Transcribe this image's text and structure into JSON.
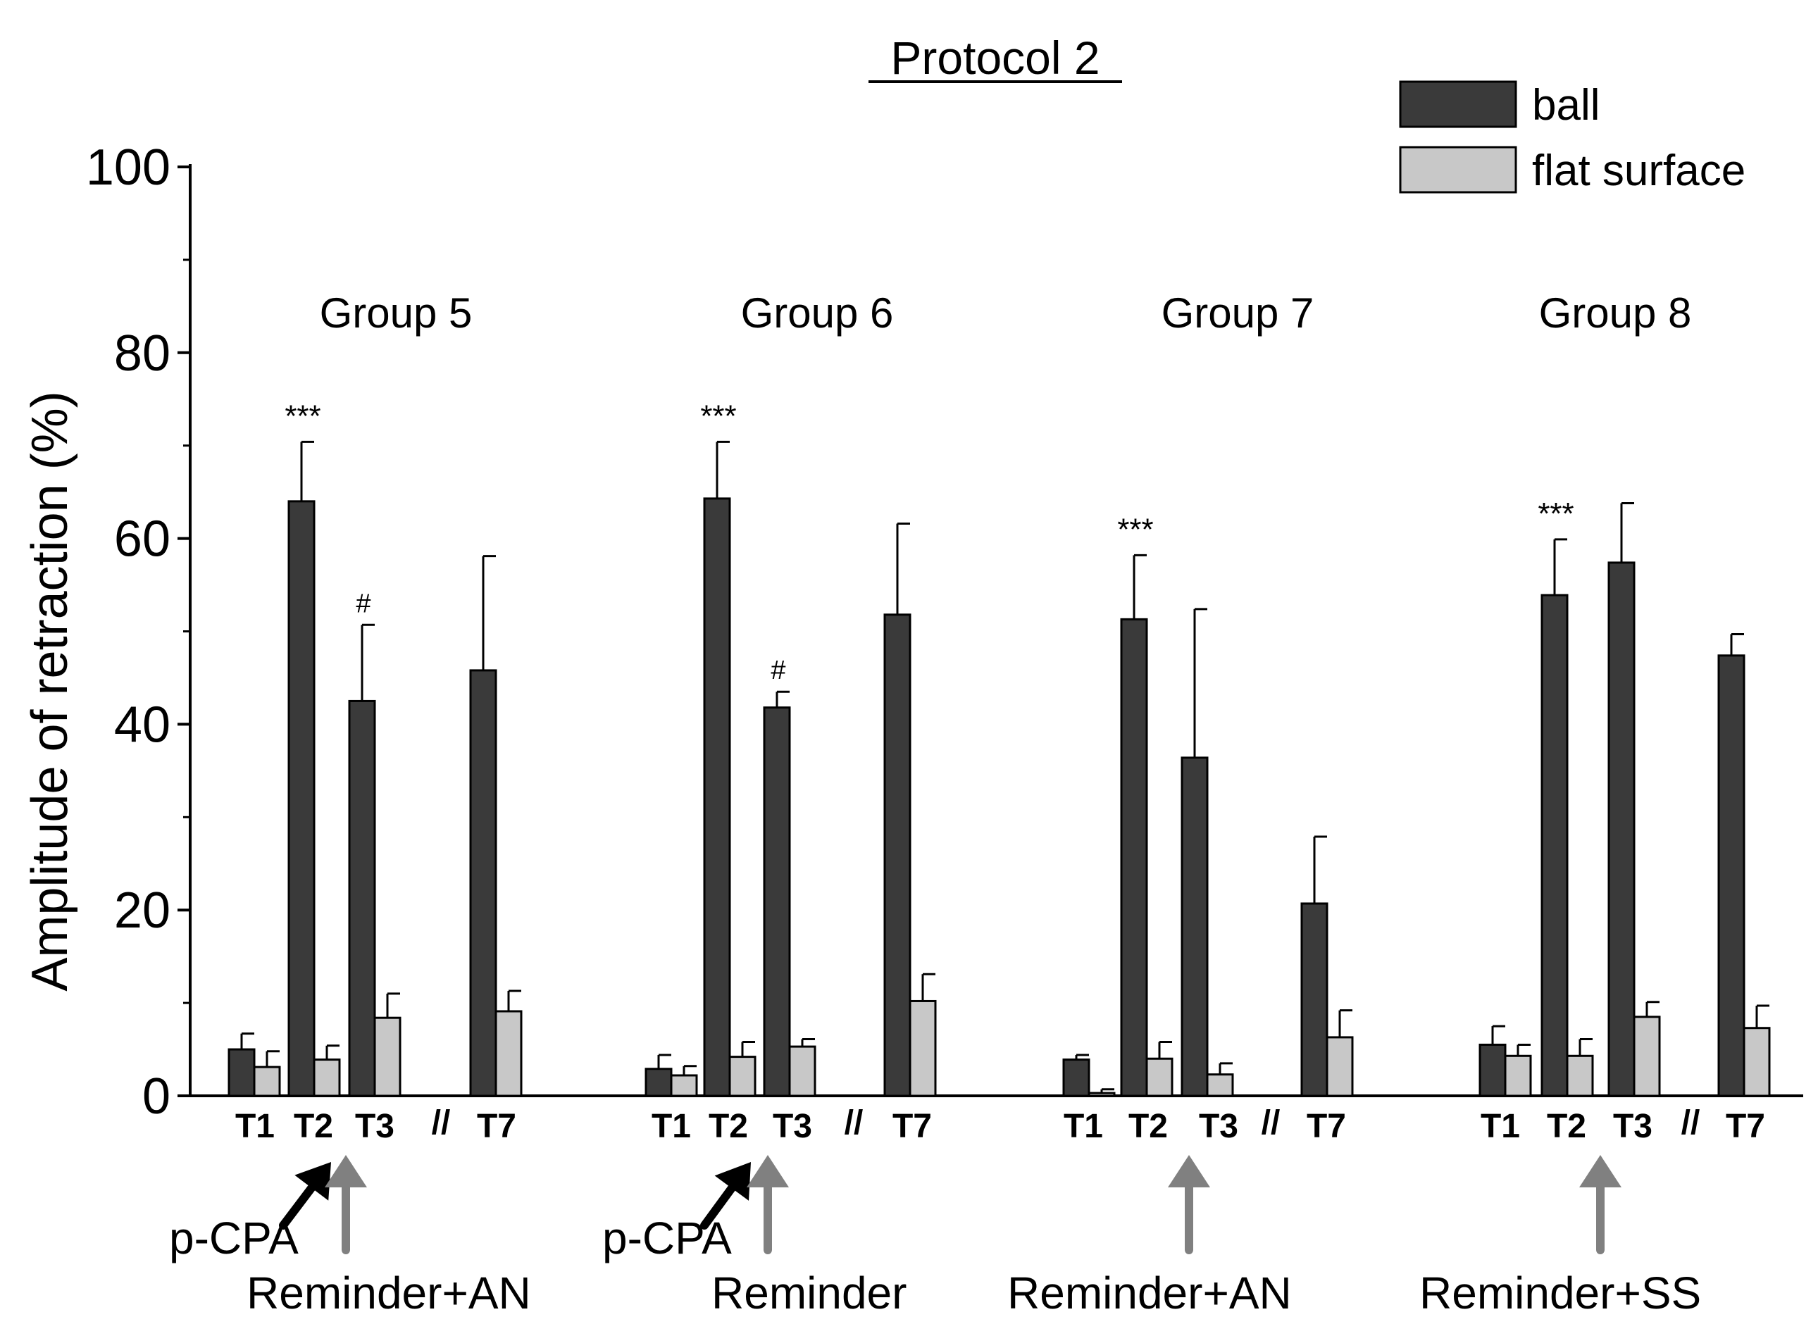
{
  "chart_data": {
    "type": "bar",
    "title": "Protocol 2",
    "ylabel": "Amplitude of retraction (%)",
    "xlabel": "",
    "ylim": [
      0,
      100
    ],
    "yticks": [
      0,
      20,
      40,
      60,
      80,
      100
    ],
    "ytick_labels": [
      "0",
      "20",
      "40",
      "60",
      "80",
      "100"
    ],
    "legend": [
      {
        "name": "ball",
        "color": "#3a3a3a"
      },
      {
        "name": "flat surface",
        "color": "#c8c8c8"
      }
    ],
    "axis_break_symbol": "//",
    "groups": [
      {
        "name": "Group 5",
        "tests": [
          "T1",
          "T2",
          "T3",
          "T7"
        ],
        "ball": [
          5.0,
          64.0,
          42.5,
          45.8
        ],
        "ball_err": [
          1.7,
          6.4,
          8.2,
          12.3
        ],
        "flat": [
          3.1,
          3.9,
          8.4,
          9.1
        ],
        "flat_err": [
          1.7,
          1.5,
          2.6,
          2.2
        ],
        "sig": {
          "T2": "***",
          "T3": "#"
        },
        "arrows": [
          {
            "color": "black",
            "label": "p-CPA"
          },
          {
            "color": "gray",
            "label": "Reminder+AN"
          }
        ]
      },
      {
        "name": "Group 6",
        "tests": [
          "T1",
          "T2",
          "T3",
          "T7"
        ],
        "ball": [
          2.9,
          64.3,
          41.8,
          51.8
        ],
        "ball_err": [
          1.5,
          6.1,
          1.7,
          9.8
        ],
        "flat": [
          2.2,
          4.2,
          5.3,
          10.2
        ],
        "flat_err": [
          1.0,
          1.6,
          0.8,
          2.9
        ],
        "sig": {
          "T2": "***",
          "T3": "#"
        },
        "arrows": [
          {
            "color": "black",
            "label": "p-CPA"
          },
          {
            "color": "gray",
            "label": "Reminder"
          }
        ]
      },
      {
        "name": "Group 7",
        "tests": [
          "T1",
          "T2",
          "T3",
          "T7"
        ],
        "ball": [
          3.9,
          51.3,
          36.4,
          20.7
        ],
        "ball_err": [
          0.5,
          6.9,
          16.0,
          7.2
        ],
        "flat": [
          0.3,
          4.0,
          2.3,
          6.3
        ],
        "flat_err": [
          0.4,
          1.8,
          1.2,
          2.9
        ],
        "sig": {
          "T2": "***"
        },
        "arrows": [
          {
            "color": "gray",
            "label": "Reminder+AN"
          }
        ]
      },
      {
        "name": "Group 8",
        "tests": [
          "T1",
          "T2",
          "T3",
          "T7"
        ],
        "ball": [
          5.5,
          53.9,
          57.4,
          47.4
        ],
        "ball_err": [
          2.0,
          6.0,
          6.4,
          2.3
        ],
        "flat": [
          4.3,
          4.3,
          8.5,
          7.3
        ],
        "flat_err": [
          1.2,
          1.8,
          1.6,
          2.4
        ],
        "sig": {
          "T2": "***"
        },
        "arrows": [
          {
            "color": "gray",
            "label": "Reminder+SS"
          }
        ]
      }
    ]
  }
}
